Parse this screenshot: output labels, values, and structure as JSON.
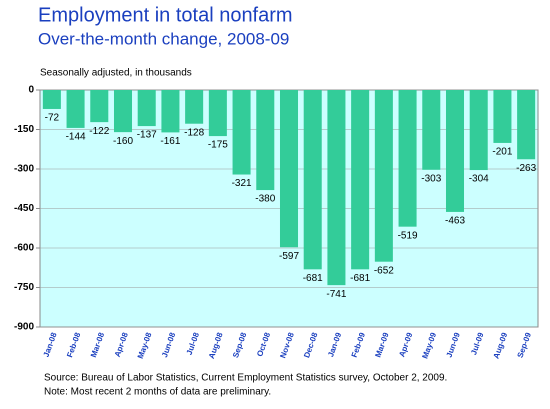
{
  "chart_data": {
    "type": "bar",
    "title": "Employment in total nonfarm",
    "subtitle": "Over-the-month change, 2008-09",
    "y_note": "Seasonally adjusted, in thousands",
    "source": "Source:  Bureau of Labor Statistics, Current Employment Statistics survey, October 2, 2009.",
    "note": "Note:  Most recent 2 months of data are preliminary.",
    "categories": [
      "Jan-08",
      "Feb-08",
      "Mar-08",
      "Apr-08",
      "May-08",
      "Jun-08",
      "Jul-08",
      "Aug-08",
      "Sep-08",
      "Oct-08",
      "Nov-08",
      "Dec-08",
      "Jan-09",
      "Feb-09",
      "Mar-09",
      "Apr-09",
      "May-09",
      "Jun-09",
      "Jul-09",
      "Aug-09",
      "Sep-09"
    ],
    "values": [
      -72,
      -144,
      -122,
      -160,
      -137,
      -161,
      -128,
      -175,
      -321,
      -380,
      -597,
      -681,
      -741,
      -681,
      -652,
      -519,
      -303,
      -463,
      -304,
      -201,
      -263
    ],
    "color": "#33cc99",
    "plot_background": "#ccffff",
    "ylim": [
      -900,
      0
    ],
    "yticks": [
      0,
      -150,
      -300,
      -450,
      -600,
      -750,
      -900
    ],
    "grid": true
  }
}
